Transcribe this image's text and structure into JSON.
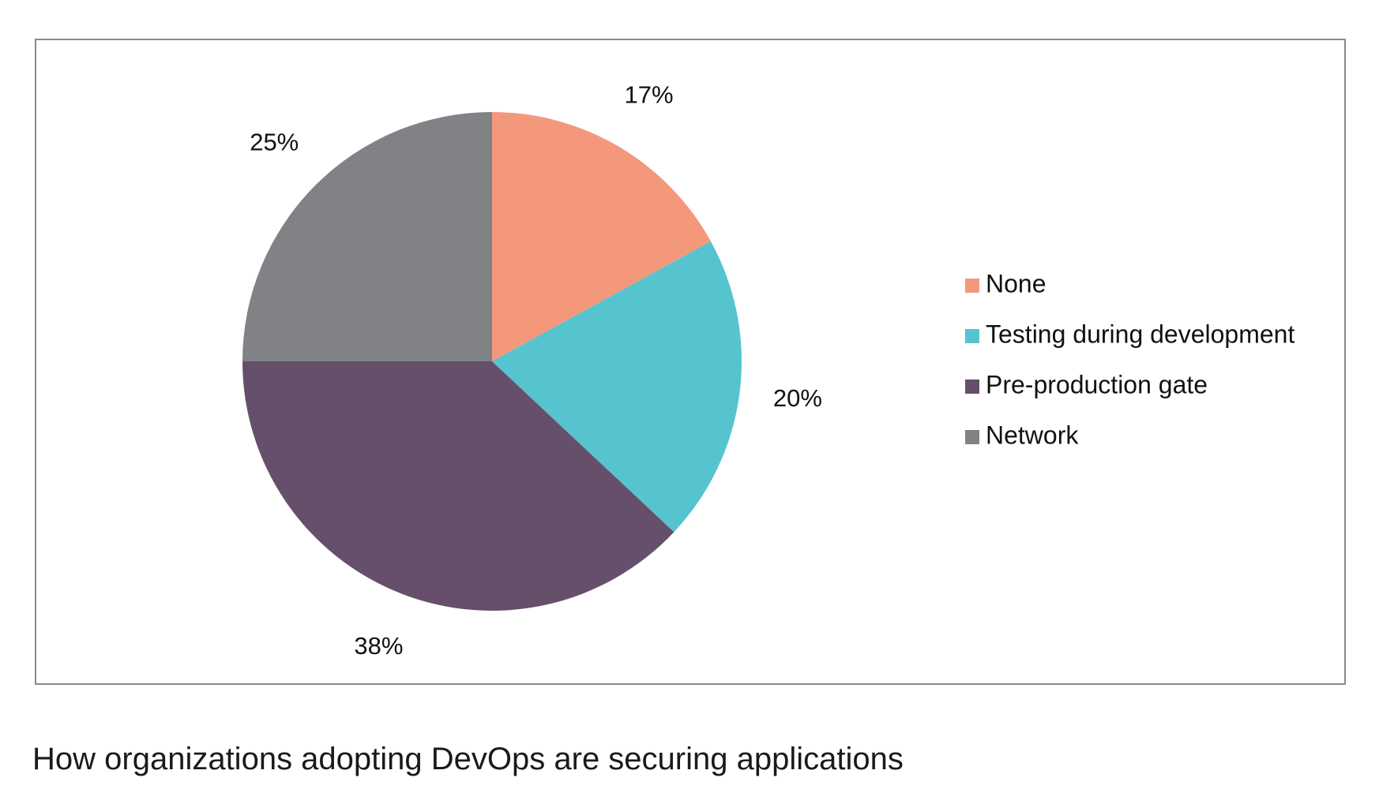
{
  "caption": "How organizations adopting DevOps are securing applications",
  "chart_data": {
    "type": "pie",
    "title": "",
    "slices": [
      {
        "label": "None",
        "value": 17,
        "display": "17%",
        "color": "#F4987C"
      },
      {
        "label": "Testing during development",
        "value": 20,
        "display": "20%",
        "color": "#55C4CF"
      },
      {
        "label": "Pre-production gate",
        "value": 38,
        "display": "38%",
        "color": "#664F6A"
      },
      {
        "label": "Network",
        "value": 25,
        "display": "25%",
        "color": "#818285"
      }
    ],
    "start_angle": "12 o'clock",
    "direction": "clockwise",
    "legend_position": "right",
    "frame_color": "#8A8A8A"
  }
}
